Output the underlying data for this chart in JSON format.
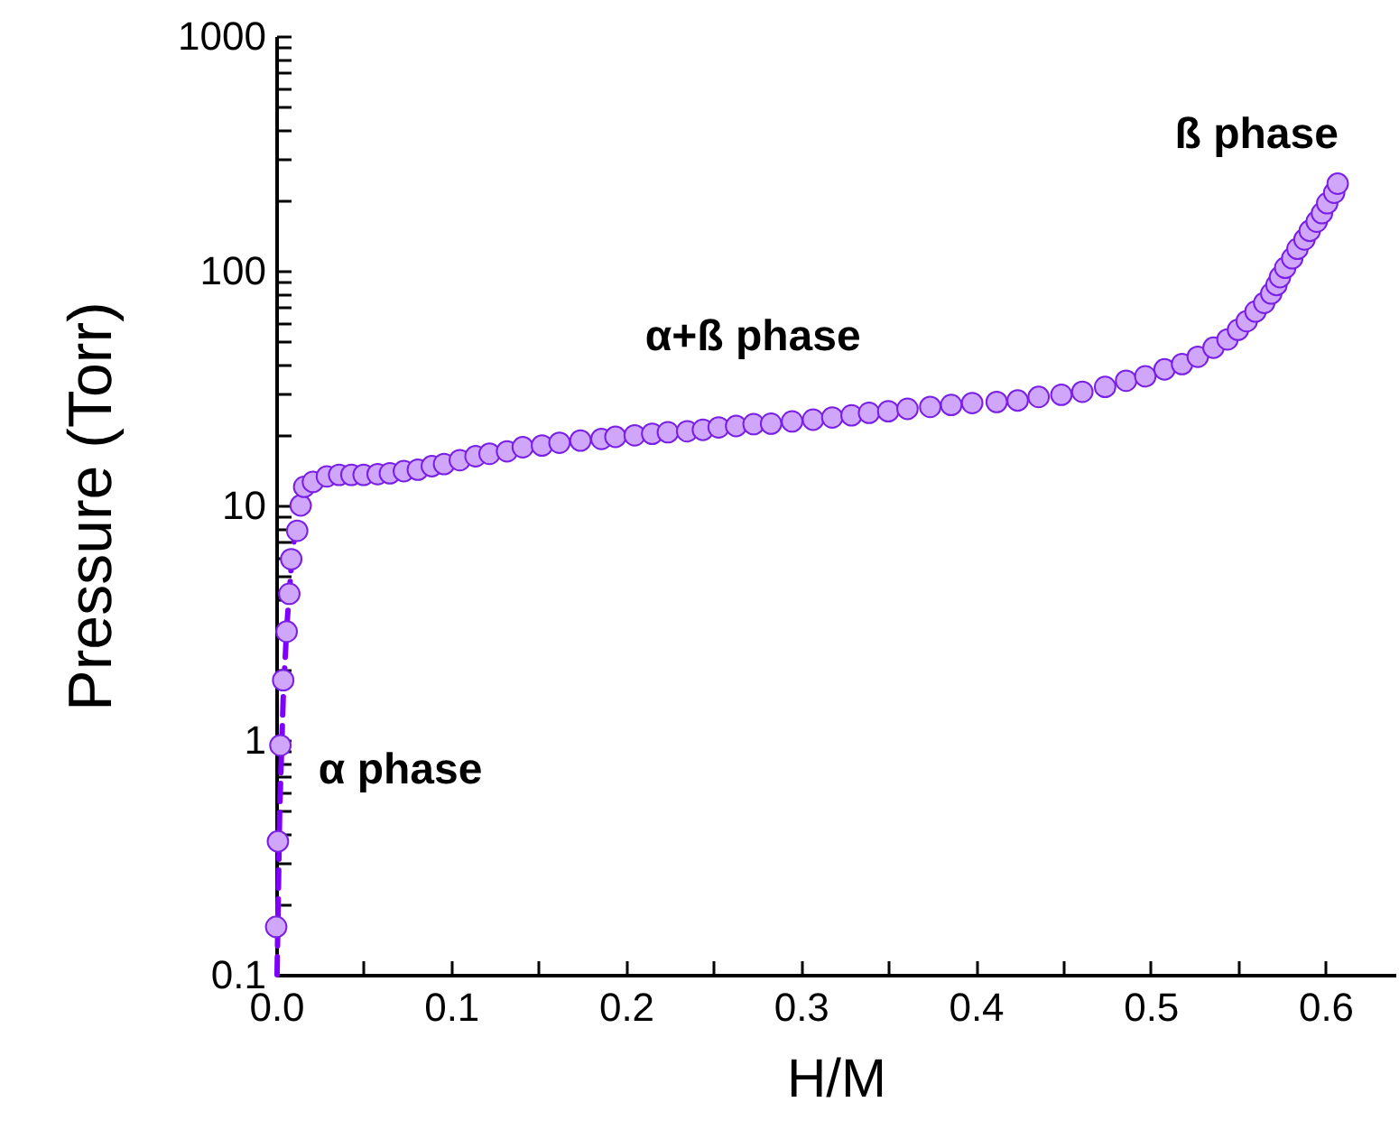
{
  "chart_data": {
    "type": "scatter",
    "xlabel": "H/M",
    "ylabel": "Pressure (Torr)",
    "log": "y",
    "grid": false,
    "xlim": [
      0,
      0.64
    ],
    "ylim": [
      0.1,
      1000
    ],
    "xticks": [
      {
        "value": 0,
        "label": "0.0"
      },
      {
        "value": 0.05,
        "label": null
      },
      {
        "value": 0.1,
        "label": "0.1"
      },
      {
        "value": 0.15,
        "label": null
      },
      {
        "value": 0.2,
        "label": "0.2"
      },
      {
        "value": 0.25,
        "label": null
      },
      {
        "value": 0.3,
        "label": "0.3"
      },
      {
        "value": 0.35,
        "label": null
      },
      {
        "value": 0.4,
        "label": "0.4"
      },
      {
        "value": 0.45,
        "label": null
      },
      {
        "value": 0.5,
        "label": "0.5"
      },
      {
        "value": 0.55,
        "label": null
      },
      {
        "value": 0.6,
        "label": "0.6"
      }
    ],
    "yticks": [
      0.1,
      {
        "value": 0.2,
        "label": null
      },
      {
        "value": 0.3,
        "label": null
      },
      {
        "value": 0.4,
        "label": null
      },
      {
        "value": 0.5,
        "label": null
      },
      {
        "value": 0.6,
        "label": null
      },
      {
        "value": 0.7,
        "label": null
      },
      {
        "value": 0.8,
        "label": null
      },
      {
        "value": 0.9,
        "label": null
      },
      1,
      {
        "value": 2,
        "label": null
      },
      {
        "value": 3,
        "label": null
      },
      {
        "value": 4,
        "label": null
      },
      {
        "value": 5,
        "label": null
      },
      {
        "value": 6,
        "label": null
      },
      {
        "value": 7,
        "label": null
      },
      {
        "value": 8,
        "label": null
      },
      {
        "value": 9,
        "label": null
      },
      10,
      {
        "value": 20,
        "label": null
      },
      {
        "value": 30,
        "label": null
      },
      {
        "value": 40,
        "label": null
      },
      {
        "value": 50,
        "label": null
      },
      {
        "value": 60,
        "label": null
      },
      {
        "value": 70,
        "label": null
      },
      {
        "value": 80,
        "label": null
      },
      {
        "value": 90,
        "label": null
      },
      100,
      {
        "value": 200,
        "label": null
      },
      {
        "value": 300,
        "label": null
      },
      {
        "value": 400,
        "label": null
      },
      {
        "value": 500,
        "label": null
      },
      {
        "value": 600,
        "label": null
      },
      {
        "value": 700,
        "label": null
      },
      {
        "value": 800,
        "label": null
      },
      {
        "value": 900,
        "label": null
      },
      1000
    ],
    "series": [
      {
        "type": "line",
        "marker": "none",
        "line_style": "dashed",
        "color": "#8000ff",
        "x": [
          0.0005,
          0.002,
          0.004,
          0.006,
          0.009,
          0.012
        ],
        "values": [
          0.1,
          0.5,
          1.5,
          3,
          6,
          9
        ]
      },
      {
        "marker": "circle",
        "color": "#cfa6f9",
        "x": [
          0,
          0.001,
          0.0024,
          0.004,
          0.006,
          0.0075,
          0.0086,
          0.012,
          0.014,
          0.016,
          0.021,
          0.029,
          0.036,
          0.043,
          0.05,
          0.058,
          0.065,
          0.073,
          0.081,
          0.089,
          0.096,
          0.105,
          0.114,
          0.122,
          0.132,
          0.141,
          0.152,
          0.162,
          0.174,
          0.186,
          0.194,
          0.205,
          0.215,
          0.224,
          0.235,
          0.244,
          0.253,
          0.263,
          0.273,
          0.283,
          0.295,
          0.307,
          0.318,
          0.329,
          0.339,
          0.35,
          0.361,
          0.374,
          0.386,
          0.398,
          0.412,
          0.424,
          0.436,
          0.449,
          0.461,
          0.474,
          0.486,
          0.497,
          0.508,
          0.518,
          0.527,
          0.536,
          0.544,
          0.55,
          0.555,
          0.56,
          0.565,
          0.569,
          0.572,
          0.574,
          0.577,
          0.581,
          0.584,
          0.588,
          0.591,
          0.595,
          0.598,
          0.601,
          0.605,
          0.607
        ],
        "values": [
          0.16,
          0.37,
          0.95,
          1.8,
          2.9,
          4.2,
          5.9,
          7.8,
          10,
          12,
          12.6,
          13.3,
          13.5,
          13.5,
          13.5,
          13.6,
          13.7,
          14,
          14.2,
          14.7,
          15,
          15.6,
          16.2,
          16.6,
          17,
          17.7,
          18,
          18.5,
          18.9,
          19.2,
          19.6,
          19.9,
          20.2,
          20.5,
          20.7,
          21,
          21.5,
          21.8,
          22.2,
          22.3,
          22.8,
          23.2,
          23.7,
          24.2,
          24.8,
          25.2,
          25.8,
          26.3,
          26.8,
          27.3,
          27.6,
          28,
          29,
          29.6,
          30.5,
          32,
          34,
          35.5,
          38,
          40,
          43,
          47,
          51,
          56,
          61,
          67,
          73,
          80,
          87,
          94,
          103,
          113,
          124,
          136,
          148,
          162,
          176,
          194,
          215,
          235
        ]
      }
    ],
    "annotations": [
      "α phase",
      "α+ß phase",
      "ß phase"
    ]
  }
}
